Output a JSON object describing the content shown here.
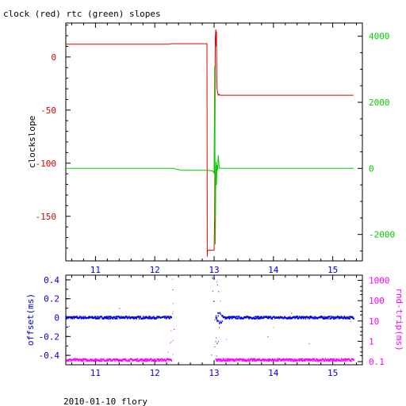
{
  "title": "clock (red) rtc (green) slopes",
  "footer": "2010-01-10 flory",
  "colors": {
    "red": "#dd0000",
    "green": "#00cc00",
    "blue": "#0000dd",
    "magenta": "#ff00ff",
    "axis": "#000000"
  },
  "chart_data": [
    {
      "type": "line",
      "title": "clock (red) rtc (green) slopes",
      "xlabel": "",
      "ylabel": "clockslope",
      "xlim": [
        10.5,
        15.5
      ],
      "x_ticks": [
        11,
        12,
        13,
        14,
        15
      ],
      "ylim": [
        -192,
        32
      ],
      "y_ticks": [
        0,
        -50,
        -100,
        -150
      ],
      "y2lim": [
        -2800,
        4400
      ],
      "y2_ticks": [
        4000,
        2000,
        0,
        -2000
      ],
      "series": [
        {
          "axis": "left",
          "color": "#dd0000",
          "x": [
            10.5,
            11.6,
            12.25,
            12.27,
            12.88,
            12.885,
            12.89,
            13.0,
            13.01,
            13.02,
            13.03,
            13.035,
            13.04,
            13.045,
            13.05,
            13.06,
            13.07,
            13.08,
            13.1,
            15.35
          ],
          "y": [
            12,
            12,
            12,
            12.5,
            12.5,
            -188,
            -182,
            -182,
            -150,
            18,
            26,
            10,
            24,
            -20,
            -30,
            -34,
            -36,
            -35,
            -36,
            -36
          ]
        },
        {
          "axis": "right",
          "color": "#00cc00",
          "x": [
            10.5,
            12.3,
            12.45,
            12.9,
            12.98,
            13.0,
            13.01,
            13.02,
            13.03,
            13.035,
            13.04,
            13.05,
            13.06,
            13.07,
            13.09,
            15.35
          ],
          "y": [
            0,
            0,
            -60,
            -60,
            -80,
            -150,
            3100,
            -2300,
            -200,
            200,
            -500,
            100,
            -50,
            400,
            0,
            0
          ]
        }
      ]
    },
    {
      "type": "scatter",
      "xlabel": "",
      "ylabel": "offset(ms)",
      "y2label": "rnd-trip(ms)",
      "xlim": [
        10.5,
        15.5
      ],
      "x_ticks": [
        11,
        12,
        13,
        14,
        15
      ],
      "ylim": [
        -0.5,
        0.45
      ],
      "y_ticks": [
        0.4,
        0.2,
        0,
        -0.2,
        -0.4
      ],
      "y_tick_labels": [
        "0.4",
        "0.2",
        "0",
        "-0.2",
        "-0.4"
      ],
      "y2_scale": "log",
      "y2lim": [
        0.07,
        1800
      ],
      "y2_ticks": [
        1000,
        100,
        10,
        1,
        0.1
      ],
      "y2_tick_labels": [
        "1000",
        "100",
        "10",
        "1",
        "0.1"
      ],
      "series": [
        {
          "color": "#0000dd",
          "axis": "left",
          "segments": [
            [
              10.5,
              12.28
            ],
            [
              13.02,
              15.35
            ]
          ],
          "level": 0.0
        },
        {
          "color": "#ff00ff",
          "axis": "right",
          "segments": [
            [
              10.5,
              12.28
            ],
            [
              13.02,
              15.35
            ]
          ],
          "level": 0.12
        }
      ],
      "outliers_offset": [
        [
          10.55,
          -0.09
        ],
        [
          11.4,
          0.1
        ],
        [
          12.3,
          0.3
        ],
        [
          12.32,
          -0.12
        ],
        [
          13.0,
          0.42
        ],
        [
          13.05,
          0.35
        ],
        [
          13.02,
          -0.25
        ],
        [
          13.08,
          -0.1
        ],
        [
          13.9,
          -0.2
        ],
        [
          14.3,
          0.05
        ]
      ],
      "outliers_rtt": [
        [
          10.55,
          180
        ],
        [
          12.29,
          1200
        ],
        [
          12.3,
          30
        ],
        [
          12.22,
          0.3
        ],
        [
          13.04,
          900
        ],
        [
          13.1,
          100
        ],
        [
          13.2,
          1.3
        ],
        [
          14.0,
          5
        ],
        [
          14.6,
          0.8
        ],
        [
          15.3,
          10
        ]
      ]
    }
  ]
}
